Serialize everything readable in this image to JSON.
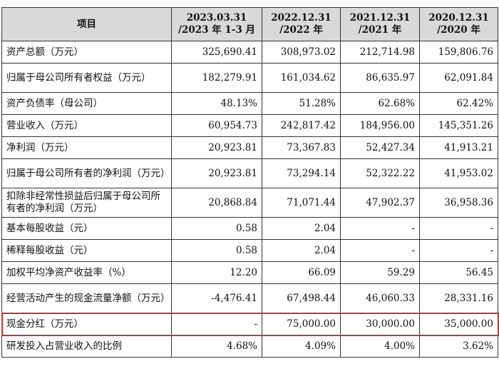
{
  "header": {
    "item": "项目",
    "periods": [
      {
        "l1": "2023.03.31",
        "l2": "/2023 年 1-3 月"
      },
      {
        "l1": "2022.12.31",
        "l2": "/2022 年"
      },
      {
        "l1": "2021.12.31",
        "l2": "/2021 年"
      },
      {
        "l1": "2020.12.31",
        "l2": "/2020 年"
      }
    ]
  },
  "rows": [
    {
      "label": "资产总额（万元）",
      "values": [
        "325,690.41",
        "308,973.02",
        "212,714.98",
        "159,806.76"
      ]
    },
    {
      "label": "归属于母公司所有者权益（万元）",
      "values": [
        "182,279.91",
        "161,034.62",
        "86,635.97",
        "62,091.84"
      ]
    },
    {
      "label": "资产负债率（母公司）",
      "values": [
        "48.13%",
        "51.28%",
        "62.68%",
        "62.42%"
      ]
    },
    {
      "label": "营业收入（万元）",
      "values": [
        "60,954.73",
        "242,817.42",
        "184,956.00",
        "145,351.26"
      ]
    },
    {
      "label": "净利润（万元）",
      "values": [
        "20,923.81",
        "73,367.83",
        "52,427.34",
        "41,913.21"
      ]
    },
    {
      "label": "归属于母公司所有者的净利润（万元）",
      "values": [
        "20,923.81",
        "73,294.14",
        "52,322.22",
        "41,953.02"
      ]
    },
    {
      "label": "扣除非经常性损益后归属于母公司所有者的净利润（万元）",
      "values": [
        "20,868.84",
        "71,071.44",
        "47,902.37",
        "36,958.36"
      ]
    },
    {
      "label": "基本每股收益（元）",
      "values": [
        "0.58",
        "2.04",
        "-",
        "-"
      ]
    },
    {
      "label": "稀释每股收益（元）",
      "values": [
        "0.58",
        "2.04",
        "-",
        "-"
      ]
    },
    {
      "label": "加权平均净资产收益率（%）",
      "values": [
        "12.20",
        "66.09",
        "59.29",
        "56.45"
      ]
    },
    {
      "label": "经营活动产生的现金流量净额（万元）",
      "values": [
        "-4,476.41",
        "67,498.44",
        "46,060.33",
        "28,331.16"
      ]
    },
    {
      "label": "现金分红（万元）",
      "values": [
        "-",
        "75,000.00",
        "30,000.00",
        "35,000.00"
      ]
    },
    {
      "label": "研发投入占营业收入的比例",
      "values": [
        "4.68%",
        "4.09%",
        "4.00%",
        "3.62%"
      ]
    }
  ]
}
